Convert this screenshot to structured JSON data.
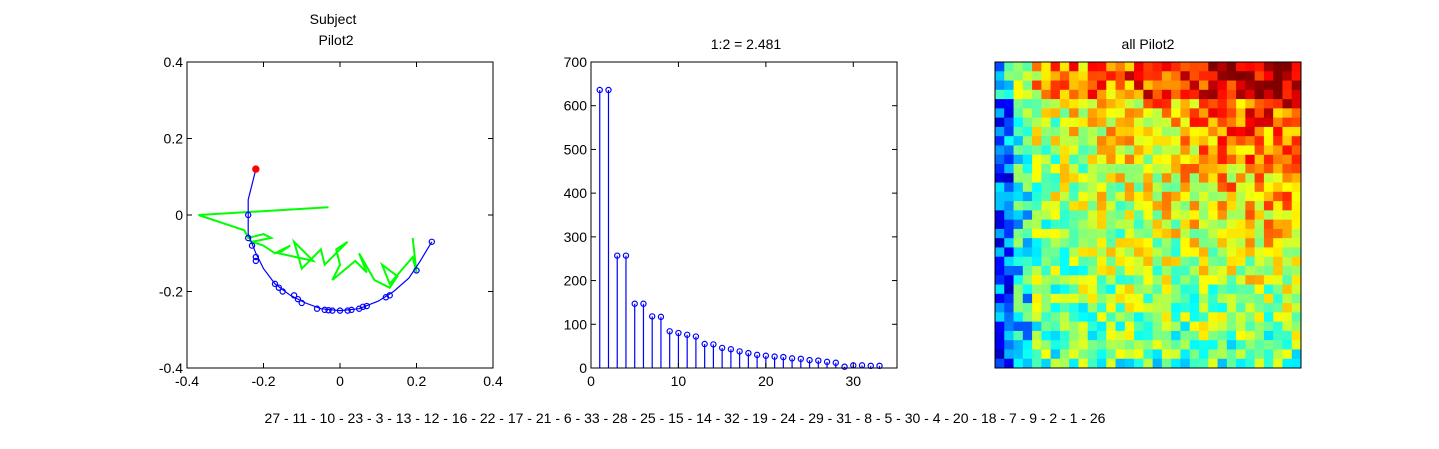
{
  "chart_data": [
    {
      "type": "scatter",
      "title": [
        "Subject",
        "Pilot2"
      ],
      "xlim": [
        -0.4,
        0.4
      ],
      "ylim": [
        -0.4,
        0.4
      ],
      "xticks": [
        "-0.4",
        "-0.2",
        "0",
        "0.2",
        "0.4"
      ],
      "yticks": [
        "-0.4",
        "-0.2",
        "0",
        "0.2",
        "0.4"
      ],
      "series": [
        {
          "kind": "trajectory-line",
          "color": "#00ff00",
          "points": [
            [
              -0.03,
              0.02
            ],
            [
              -0.37,
              0.0
            ],
            [
              -0.25,
              -0.04
            ],
            [
              -0.24,
              -0.06
            ],
            [
              -0.2,
              -0.05
            ],
            [
              -0.18,
              -0.06
            ],
            [
              -0.23,
              -0.07
            ],
            [
              -0.2,
              -0.08
            ],
            [
              -0.17,
              -0.1
            ],
            [
              -0.13,
              -0.08
            ],
            [
              -0.16,
              -0.1
            ],
            [
              -0.07,
              -0.12
            ],
            [
              -0.12,
              -0.07
            ],
            [
              -0.1,
              -0.14
            ],
            [
              -0.05,
              -0.09
            ],
            [
              -0.04,
              -0.13
            ],
            [
              0.02,
              -0.07
            ],
            [
              -0.01,
              -0.09
            ],
            [
              0.0,
              -0.13
            ],
            [
              -0.02,
              -0.17
            ],
            [
              0.04,
              -0.12
            ],
            [
              0.07,
              -0.15
            ],
            [
              0.05,
              -0.1
            ],
            [
              0.09,
              -0.17
            ],
            [
              0.13,
              -0.19
            ],
            [
              0.15,
              -0.16
            ],
            [
              0.11,
              -0.13
            ],
            [
              0.13,
              -0.18
            ],
            [
              0.19,
              -0.11
            ],
            [
              0.2,
              -0.15
            ],
            [
              0.19,
              -0.06
            ]
          ]
        },
        {
          "kind": "arc-line",
          "color": "#0000ff",
          "points": [
            [
              -0.22,
              0.12
            ],
            [
              -0.24,
              0.04
            ],
            [
              -0.24,
              0.0
            ],
            [
              -0.24,
              -0.05
            ],
            [
              -0.22,
              -0.1
            ],
            [
              -0.2,
              -0.14
            ],
            [
              -0.17,
              -0.18
            ],
            [
              -0.13,
              -0.21
            ],
            [
              -0.09,
              -0.23
            ],
            [
              -0.05,
              -0.245
            ],
            [
              0.0,
              -0.25
            ],
            [
              0.05,
              -0.245
            ],
            [
              0.1,
              -0.225
            ],
            [
              0.14,
              -0.2
            ],
            [
              0.18,
              -0.165
            ],
            [
              0.21,
              -0.12
            ],
            [
              0.24,
              -0.07
            ]
          ]
        },
        {
          "kind": "markers",
          "color": "#0000ff",
          "points": [
            [
              -0.24,
              0.0
            ],
            [
              -0.24,
              -0.06
            ],
            [
              -0.23,
              -0.08
            ],
            [
              -0.22,
              -0.11
            ],
            [
              -0.22,
              -0.12
            ],
            [
              -0.17,
              -0.18
            ],
            [
              -0.16,
              -0.19
            ],
            [
              -0.15,
              -0.2
            ],
            [
              -0.12,
              -0.21
            ],
            [
              -0.11,
              -0.22
            ],
            [
              -0.1,
              -0.23
            ],
            [
              -0.06,
              -0.245
            ],
            [
              -0.04,
              -0.248
            ],
            [
              -0.03,
              -0.249
            ],
            [
              -0.02,
              -0.25
            ],
            [
              0.0,
              -0.25
            ],
            [
              0.02,
              -0.25
            ],
            [
              0.03,
              -0.248
            ],
            [
              0.05,
              -0.245
            ],
            [
              0.06,
              -0.24
            ],
            [
              0.07,
              -0.238
            ],
            [
              0.12,
              -0.215
            ],
            [
              0.13,
              -0.21
            ],
            [
              0.2,
              -0.145
            ],
            [
              0.24,
              -0.07
            ]
          ]
        },
        {
          "kind": "start-marker",
          "color": "#ff0000",
          "points": [
            [
              -0.22,
              0.12
            ]
          ]
        }
      ]
    },
    {
      "type": "bar",
      "style": "stem",
      "title": "1:2 = 2.481",
      "xlim": [
        0,
        35
      ],
      "ylim": [
        0,
        700
      ],
      "xticks": [
        "0",
        "10",
        "20",
        "30"
      ],
      "yticks": [
        "0",
        "100",
        "200",
        "300",
        "400",
        "500",
        "600",
        "700"
      ],
      "color": "#0000ff",
      "x": [
        1,
        2,
        3,
        4,
        5,
        6,
        7,
        8,
        9,
        10,
        11,
        12,
        13,
        14,
        15,
        16,
        17,
        18,
        19,
        20,
        21,
        22,
        23,
        24,
        25,
        26,
        27,
        28,
        29,
        30,
        31,
        32,
        33
      ],
      "values": [
        636,
        636,
        257,
        257,
        147,
        147,
        118,
        117,
        84,
        80,
        76,
        72,
        55,
        54,
        46,
        43,
        38,
        34,
        30,
        28,
        26,
        25,
        22,
        21,
        18,
        17,
        14,
        12,
        3,
        6,
        6,
        5,
        5
      ]
    },
    {
      "type": "heatmap",
      "title": "all Pilot2",
      "rows": 33,
      "cols": 33,
      "colormap": "jet",
      "vrange": [
        0,
        1
      ]
    }
  ],
  "order_label": "27 - 11 - 10 - 23 - 3 - 13 - 12 - 16 - 22 - 17 - 21 - 6 - 33 - 28 - 25 - 15 - 14 - 32 - 19 - 24 - 29 - 31 - 8 - 5 - 30 - 4 - 20 - 18 - 7 - 9 - 2 - 1 - 26"
}
